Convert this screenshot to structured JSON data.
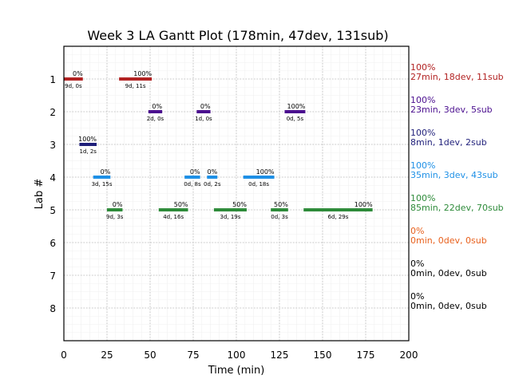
{
  "chart_data": {
    "type": "gantt",
    "title": "Week 3 LA Gantt Plot (178min, 47dev, 131sub)",
    "xlabel": "Time (min)",
    "ylabel": "Lab #",
    "xlim": [
      0,
      200
    ],
    "ylim": [
      9,
      0
    ],
    "xticks": [
      "0",
      "25",
      "50",
      "75",
      "100",
      "125",
      "150",
      "175",
      "200"
    ],
    "yticks": [
      "1",
      "2",
      "3",
      "4",
      "5",
      "6",
      "7",
      "8"
    ],
    "grid": true,
    "labs": [
      {
        "lab": 1,
        "color": "#b22222",
        "summary_pct": "100%",
        "summary": "27min, 18dev, 11sub",
        "bars": [
          {
            "start": 0,
            "end": 11,
            "pct": "0%",
            "duration": "9d, 0s"
          },
          {
            "start": 32,
            "end": 51,
            "pct": "100%",
            "duration": "9d, 11s"
          }
        ]
      },
      {
        "lab": 2,
        "color": "#4b0f8f",
        "summary_pct": "100%",
        "summary": "23min, 3dev, 5sub",
        "bars": [
          {
            "start": 49,
            "end": 57,
            "pct": "0%",
            "duration": "2d, 0s"
          },
          {
            "start": 77,
            "end": 85,
            "pct": "0%",
            "duration": "1d, 0s"
          },
          {
            "start": 128,
            "end": 140,
            "pct": "100%",
            "duration": "0d, 5s"
          }
        ]
      },
      {
        "lab": 3,
        "color": "#1f1f7a",
        "summary_pct": "100%",
        "summary": "8min, 1dev, 2sub",
        "bars": [
          {
            "start": 9,
            "end": 19,
            "pct": "100%",
            "duration": "1d, 2s"
          }
        ]
      },
      {
        "lab": 4,
        "color": "#1e90e6",
        "summary_pct": "100%",
        "summary": "35min, 3dev, 43sub",
        "bars": [
          {
            "start": 17,
            "end": 27,
            "pct": "0%",
            "duration": "3d, 15s"
          },
          {
            "start": 70,
            "end": 79,
            "pct": "0%",
            "duration": "0d, 8s"
          },
          {
            "start": 83,
            "end": 89,
            "pct": "0%",
            "duration": "0d, 2s"
          },
          {
            "start": 104,
            "end": 122,
            "pct": "100%",
            "duration": "0d, 18s"
          }
        ]
      },
      {
        "lab": 5,
        "color": "#2e8b3a",
        "summary_pct": "100%",
        "summary": "85min, 22dev, 70sub",
        "bars": [
          {
            "start": 25,
            "end": 34,
            "pct": "0%",
            "duration": "9d, 3s"
          },
          {
            "start": 55,
            "end": 72,
            "pct": "50%",
            "duration": "4d, 16s"
          },
          {
            "start": 87,
            "end": 106,
            "pct": "50%",
            "duration": "3d, 19s"
          },
          {
            "start": 120,
            "end": 130,
            "pct": "50%",
            "duration": "0d, 3s"
          },
          {
            "start": 139,
            "end": 179,
            "pct": "100%",
            "duration": "6d, 29s"
          }
        ]
      },
      {
        "lab": 6,
        "color": "#e8601c",
        "summary_pct": "0%",
        "summary": "0min, 0dev, 0sub",
        "bars": []
      },
      {
        "lab": 7,
        "color": "#000000",
        "summary_pct": "0%",
        "summary": "0min, 0dev, 0sub",
        "bars": []
      },
      {
        "lab": 8,
        "color": "#000000",
        "summary_pct": "0%",
        "summary": "0min, 0dev, 0sub",
        "bars": []
      }
    ]
  }
}
